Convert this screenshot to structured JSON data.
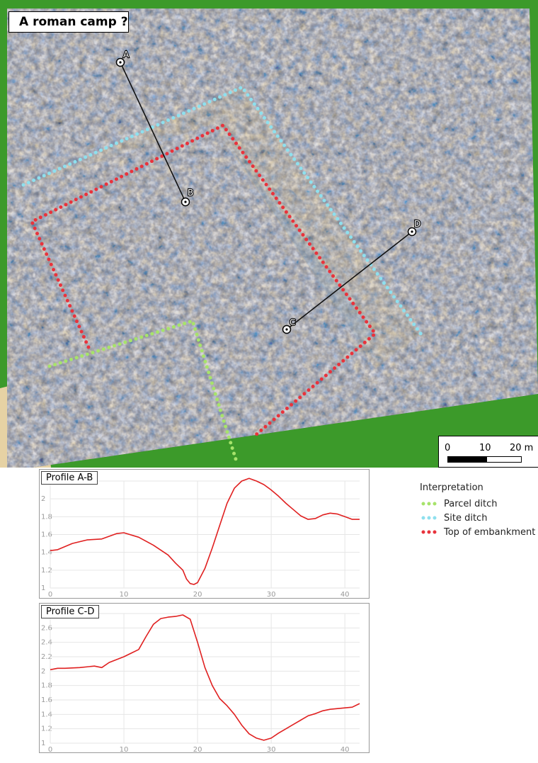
{
  "map": {
    "title": "A roman camp ?",
    "points": [
      {
        "label": "A",
        "name": "point-a-marker"
      },
      {
        "label": "B",
        "name": "point-b-marker"
      },
      {
        "label": "C",
        "name": "point-c-marker"
      },
      {
        "label": "D",
        "name": "point-d-marker"
      }
    ],
    "scale_bar": {
      "labels": [
        "0",
        "10",
        "20 m"
      ]
    },
    "colors": {
      "background_land": "#3c9a2a",
      "sand": "#e6d2a4",
      "hillshade_base": "#b8bcc0",
      "parcel_ditch": "#a7e36b",
      "site_ditch": "#8ee0ee",
      "top_of_embankment": "#e8333c"
    }
  },
  "legend": {
    "title": "Interpretation",
    "items": [
      {
        "label": "Parcel ditch",
        "color": "#a7e36b"
      },
      {
        "label": "Site ditch",
        "color": "#8ee0ee"
      },
      {
        "label": "Top of embankment",
        "color": "#e8333c"
      }
    ]
  },
  "chart_data": [
    {
      "type": "line",
      "title": "Profile A-B",
      "xlim": [
        0,
        42
      ],
      "ylim": [
        1.0,
        2.2
      ],
      "x_ticks": [
        0,
        10,
        20,
        30,
        40
      ],
      "y_ticks": [
        1,
        1.2,
        1.4,
        1.6,
        1.8,
        2,
        2.2
      ],
      "color": "#e02020",
      "x": [
        0,
        1,
        3,
        5,
        7,
        9,
        10,
        12,
        14,
        16,
        17,
        18,
        18.5,
        19,
        19.5,
        20,
        21,
        22,
        23,
        24,
        25,
        26,
        27,
        28,
        29,
        30,
        31,
        32,
        33,
        34,
        35,
        36,
        37,
        38,
        39,
        40,
        41,
        42
      ],
      "y": [
        1.42,
        1.43,
        1.5,
        1.54,
        1.55,
        1.61,
        1.62,
        1.57,
        1.48,
        1.37,
        1.28,
        1.2,
        1.1,
        1.05,
        1.04,
        1.06,
        1.22,
        1.45,
        1.7,
        1.95,
        2.12,
        2.2,
        2.23,
        2.2,
        2.16,
        2.1,
        2.03,
        1.95,
        1.88,
        1.81,
        1.77,
        1.78,
        1.82,
        1.84,
        1.83,
        1.8,
        1.77,
        1.77
      ]
    },
    {
      "type": "line",
      "title": "Profile C-D",
      "xlim": [
        0,
        42
      ],
      "ylim": [
        1.0,
        2.8
      ],
      "x_ticks": [
        0,
        10,
        20,
        30,
        40
      ],
      "y_ticks": [
        1,
        1.2,
        1.4,
        1.6,
        1.8,
        2,
        2.2,
        2.4,
        2.6,
        2.8
      ],
      "color": "#e02020",
      "x": [
        0,
        1,
        2,
        4,
        6,
        7,
        8,
        10,
        11,
        12,
        13,
        14,
        15,
        16,
        17,
        18,
        19,
        20,
        21,
        22,
        23,
        24,
        25,
        26,
        27,
        28,
        29,
        30,
        31,
        32,
        33,
        34,
        35,
        36,
        37,
        38,
        39,
        40,
        41,
        42
      ],
      "y": [
        2.02,
        2.04,
        2.04,
        2.05,
        2.07,
        2.05,
        2.12,
        2.2,
        2.25,
        2.3,
        2.48,
        2.65,
        2.73,
        2.75,
        2.76,
        2.78,
        2.72,
        2.4,
        2.05,
        1.8,
        1.62,
        1.52,
        1.4,
        1.25,
        1.13,
        1.07,
        1.04,
        1.07,
        1.14,
        1.2,
        1.26,
        1.32,
        1.38,
        1.41,
        1.45,
        1.47,
        1.48,
        1.49,
        1.5,
        1.55
      ]
    }
  ]
}
